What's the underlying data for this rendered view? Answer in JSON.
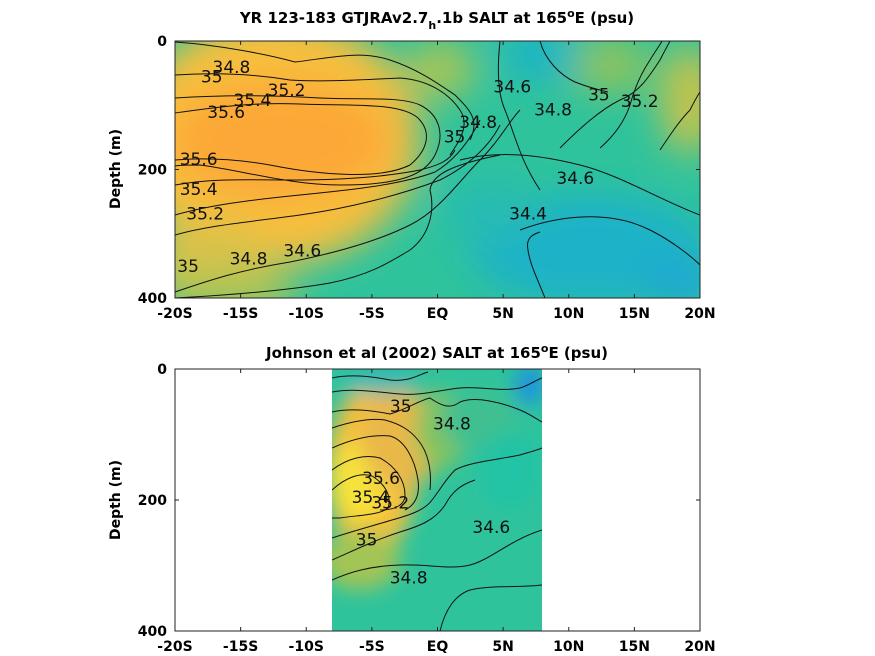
{
  "chart_data": [
    {
      "type": "heatmap",
      "title": "YR 123-183 GTJRAv2.7_h.1b SALT at 165°E (psu)",
      "title_parts": {
        "a": "YR 123-183 GTJRAv2.7",
        "sub": "h",
        "b": ".1b SALT at 165",
        "sup": "o",
        "c": "E (psu)"
      },
      "xlabel": "",
      "ylabel": "Depth (m)",
      "x_ticks": [
        "-20S",
        "-15S",
        "-10S",
        "-5S",
        "EQ",
        "5N",
        "10N",
        "15N",
        "20N"
      ],
      "y_ticks": [
        "0",
        "200",
        "400"
      ],
      "xlim": [
        -20,
        20
      ],
      "ylim": [
        400,
        0
      ],
      "contour_labels": [
        {
          "text": "34.8",
          "lat": -15.7,
          "depth": 42
        },
        {
          "text": "35",
          "lat": -17.2,
          "depth": 57
        },
        {
          "text": "35.2",
          "lat": -11.5,
          "depth": 78
        },
        {
          "text": "35.4",
          "lat": -14.1,
          "depth": 93
        },
        {
          "text": "35.6",
          "lat": -16.1,
          "depth": 112
        },
        {
          "text": "35.6",
          "lat": -18.2,
          "depth": 185
        },
        {
          "text": "35.4",
          "lat": -18.2,
          "depth": 232
        },
        {
          "text": "35.2",
          "lat": -17.7,
          "depth": 270
        },
        {
          "text": "35",
          "lat": -19.0,
          "depth": 352
        },
        {
          "text": "34.8",
          "lat": -14.4,
          "depth": 340
        },
        {
          "text": "34.6",
          "lat": -10.3,
          "depth": 328
        },
        {
          "text": "35",
          "lat": 1.3,
          "depth": 150
        },
        {
          "text": "34.8",
          "lat": 3.1,
          "depth": 128
        },
        {
          "text": "34.6",
          "lat": 5.7,
          "depth": 72
        },
        {
          "text": "34.8",
          "lat": 8.8,
          "depth": 108
        },
        {
          "text": "35",
          "lat": 12.3,
          "depth": 85
        },
        {
          "text": "35.2",
          "lat": 15.4,
          "depth": 95
        },
        {
          "text": "34.6",
          "lat": 10.5,
          "depth": 215
        },
        {
          "text": "34.4",
          "lat": 6.9,
          "depth": 270
        }
      ]
    },
    {
      "type": "heatmap",
      "title": "Johnson et al (2002) SALT at 165°E (psu)",
      "title_parts": {
        "a": "Johnson et al (2002) SALT at 165",
        "sup": "o",
        "b": "E (psu)"
      },
      "xlabel": "",
      "ylabel": "Depth (m)",
      "x_ticks": [
        "-20S",
        "-15S",
        "-10S",
        "-5S",
        "EQ",
        "5N",
        "10N",
        "15N",
        "20N"
      ],
      "y_ticks": [
        "0",
        "200",
        "400"
      ],
      "xlim": [
        -20,
        20
      ],
      "ylim": [
        400,
        0
      ],
      "data_extent_lat": [
        -8,
        8
      ],
      "contour_labels": [
        {
          "text": "35",
          "lat": -2.8,
          "depth": 58
        },
        {
          "text": "34.8",
          "lat": 1.1,
          "depth": 85
        },
        {
          "text": "35.6",
          "lat": -4.3,
          "depth": 168
        },
        {
          "text": "35.4",
          "lat": -5.1,
          "depth": 197
        },
        {
          "text": "35.2",
          "lat": -3.6,
          "depth": 205
        },
        {
          "text": "35",
          "lat": -5.4,
          "depth": 262
        },
        {
          "text": "34.6",
          "lat": 4.1,
          "depth": 243
        },
        {
          "text": "34.8",
          "lat": -2.2,
          "depth": 320
        }
      ]
    }
  ]
}
